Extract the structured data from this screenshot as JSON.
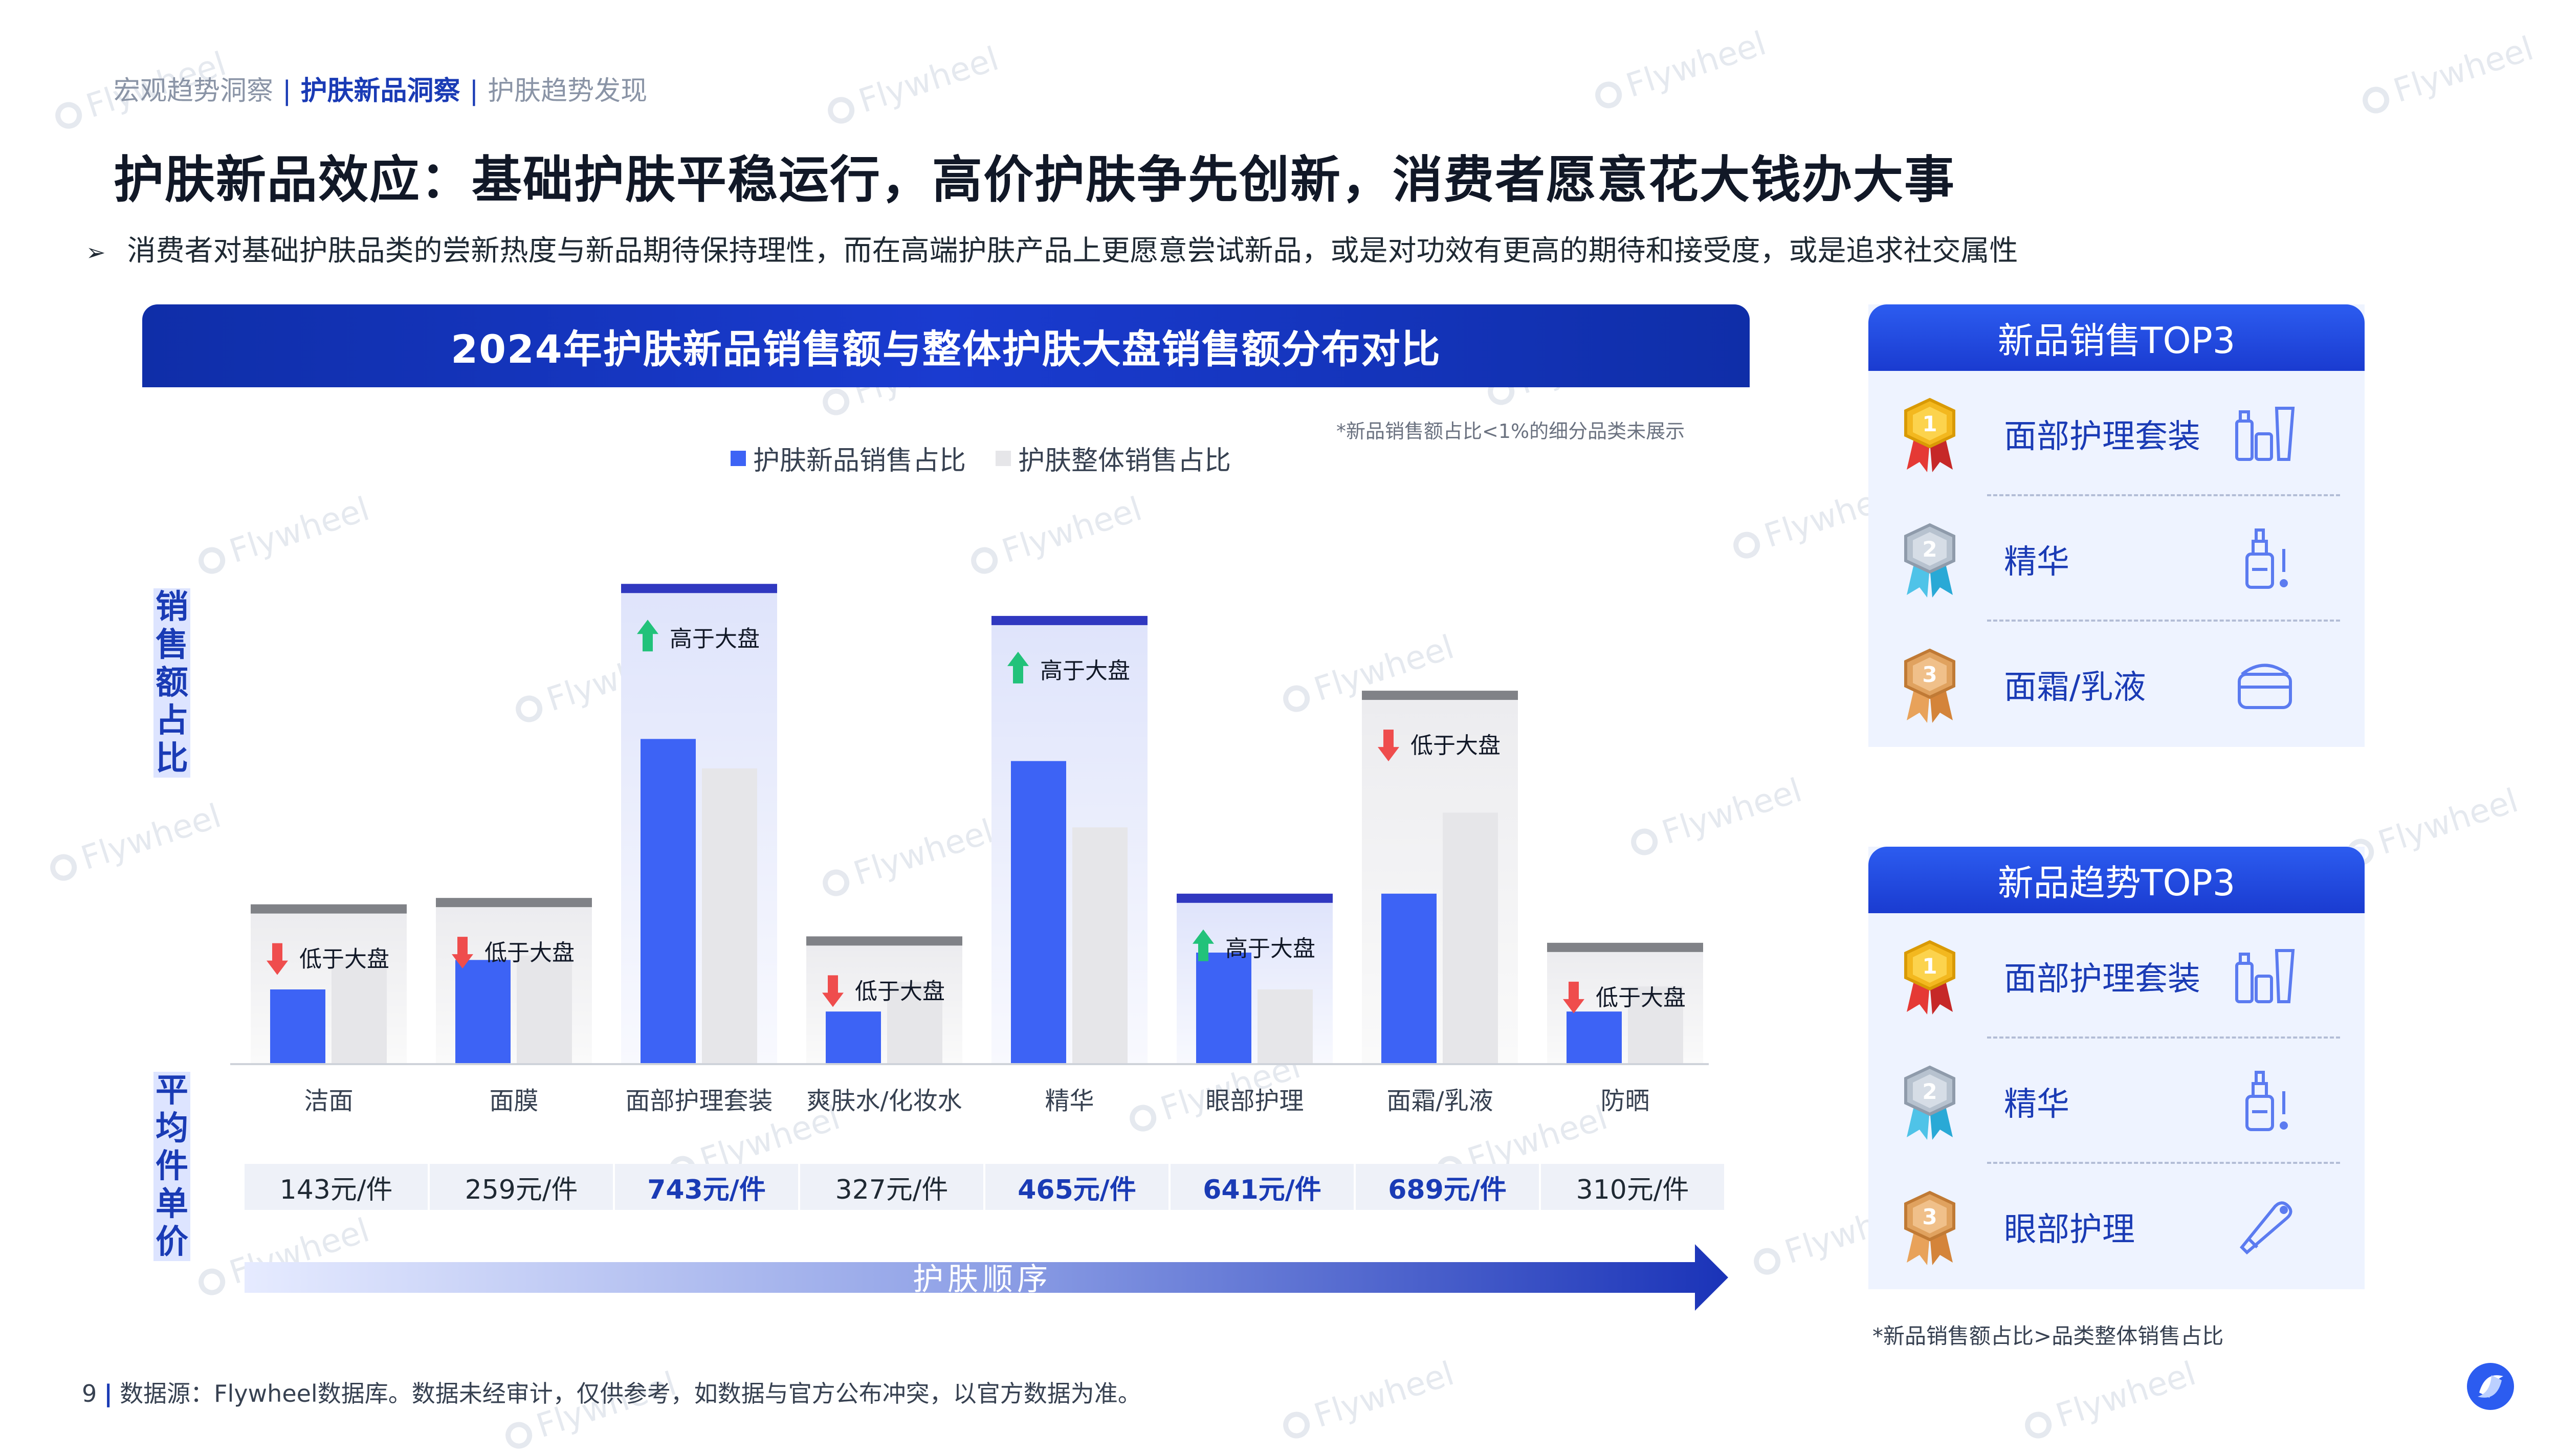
{
  "header": {
    "breadcrumb": [
      "宏观趋势洞察",
      "护肤新品洞察",
      "护肤趋势发现"
    ],
    "title": "护肤新品效应：基础护肤平稳运行，高价护肤争先创新，消费者愿意花大钱办大事",
    "bullet_marker": "➢",
    "bullet": "消费者对基础护肤品类的尝新热度与新品期待保持理性，而在高端护肤产品上更愿意尝试新品，或是对功效有更高的期待和接受度，或是追求社交属性"
  },
  "panel": {
    "title": "2024年护肤新品销售额与整体护肤大盘销售额分布对比",
    "note": "*新品销售额占比<1%的细分品类未展示",
    "y_label_top": "销售额占比",
    "y_label_bottom": "平均件单价",
    "order_label": "护肤顺序"
  },
  "colors": {
    "new_series": "#3d63f5",
    "overall_series": "#e6e6e9",
    "up": "#22c27a",
    "down": "#ef4d4d",
    "brand": "#1a3bb5"
  },
  "chart_data": {
    "type": "bar",
    "categories": [
      "洁面",
      "面膜",
      "面部护理套装",
      "爽肤水/化妆水",
      "精华",
      "眼部护理",
      "面霜/乳液",
      "防晒"
    ],
    "series": [
      {
        "name": "护肤新品销售占比",
        "values": [
          5.0,
          7.0,
          22.0,
          3.5,
          20.5,
          7.5,
          11.5,
          3.5
        ]
      },
      {
        "name": "护肤整体销售占比",
        "values": [
          7.0,
          7.3,
          20.0,
          5.5,
          16.0,
          5.0,
          17.0,
          5.2
        ]
      }
    ],
    "comparison": [
      "低于大盘",
      "低于大盘",
      "高于大盘",
      "低于大盘",
      "高于大盘",
      "高于大盘",
      "低于大盘",
      "低于大盘"
    ],
    "trend": [
      "down",
      "down",
      "up",
      "down",
      "up",
      "up",
      "down",
      "down"
    ],
    "avg_price": [
      "143元/件",
      "259元/件",
      "743元/件",
      "327元/件",
      "465元/件",
      "641元/件",
      "689元/件",
      "310元/件"
    ],
    "avg_price_highlight": [
      false,
      false,
      true,
      false,
      true,
      true,
      true,
      false
    ],
    "ylim": [
      0,
      25
    ],
    "legend_position": "top-center",
    "grid": false
  },
  "cards": [
    {
      "title": "新品销售TOP3",
      "items": [
        {
          "rank": "1",
          "label": "面部护理套装",
          "icon": "skincare-set-icon"
        },
        {
          "rank": "2",
          "label": "精华",
          "icon": "serum-bottle-icon"
        },
        {
          "rank": "3",
          "label": "面霜/乳液",
          "icon": "cream-jar-icon"
        }
      ]
    },
    {
      "title": "新品趋势TOP3",
      "items": [
        {
          "rank": "1",
          "label": "面部护理套装",
          "icon": "skincare-set-icon"
        },
        {
          "rank": "2",
          "label": "精华",
          "icon": "serum-bottle-icon"
        },
        {
          "rank": "3",
          "label": "眼部护理",
          "icon": "eye-care-tube-icon"
        }
      ]
    }
  ],
  "card_note": "*新品销售额占比>品类整体销售占比",
  "footer": {
    "page": "9",
    "source": "数据源：Flywheel数据库。数据未经审计，仅供参考，如数据与官方公布冲突，以官方数据为准。"
  },
  "watermark": "Flywheel"
}
